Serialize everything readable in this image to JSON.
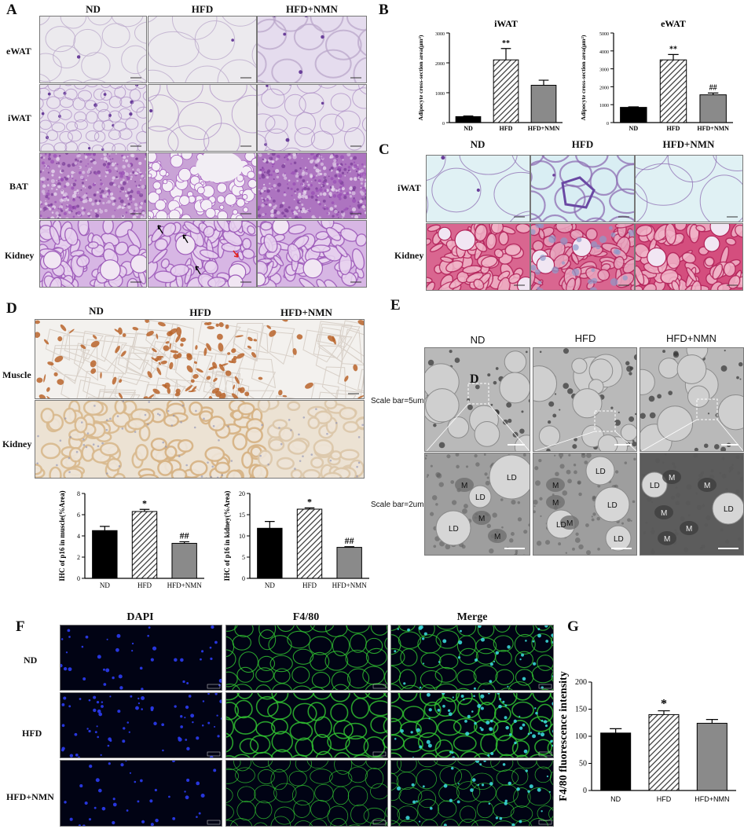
{
  "panelA": {
    "label": "A",
    "columns": [
      "ND",
      "HFD",
      "HFD+NMN"
    ],
    "rows": [
      "eWAT",
      "iWAT",
      "BAT",
      "Kidney"
    ]
  },
  "panelB": {
    "label": "B",
    "charts": [
      {
        "title": "iWAT",
        "ylabel": "Adipocyte cross-section area(μm²)",
        "categories": [
          "ND",
          "HFD",
          "HFD+NMN"
        ],
        "values": [
          200,
          2100,
          1250
        ],
        "errors": [
          20,
          380,
          170
        ],
        "marks": [
          "",
          "**",
          ""
        ],
        "yticks": [
          0,
          1000,
          2000,
          3000
        ],
        "ymax": 3000
      },
      {
        "title": "eWAT",
        "ylabel": "Adipocyte cross-section area(μm²)",
        "categories": [
          "ND",
          "HFD",
          "HFD+NMN"
        ],
        "values": [
          850,
          3500,
          1550
        ],
        "errors": [
          30,
          300,
          100
        ],
        "marks": [
          "",
          "**",
          "##"
        ],
        "yticks": [
          0,
          1000,
          2000,
          3000,
          4000,
          5000
        ],
        "ymax": 5000
      }
    ]
  },
  "panelC": {
    "label": "C",
    "columns": [
      "ND",
      "HFD",
      "HFD+NMN"
    ],
    "rows": [
      "iWAT",
      "Kidney"
    ]
  },
  "panelD": {
    "label": "D",
    "columns": [
      "ND",
      "HFD",
      "HFD+NMN"
    ],
    "rows": [
      "Muscle",
      "Kidney"
    ],
    "charts": [
      {
        "ylabel": "IHC of p16 in muscle(%Area)",
        "categories": [
          "ND",
          "HFD",
          "HFD+NMN"
        ],
        "values": [
          4.5,
          6.3,
          3.3
        ],
        "errors": [
          0.4,
          0.2,
          0.15
        ],
        "marks": [
          "",
          "*",
          "##"
        ],
        "yticks": [
          0,
          2,
          4,
          6,
          8
        ],
        "ymax": 8
      },
      {
        "ylabel": "IHC of p16 in kidney(%Area)",
        "categories": [
          "ND",
          "HFD",
          "HFD+NMN"
        ],
        "values": [
          11.8,
          16.3,
          7.3
        ],
        "errors": [
          1.6,
          0.3,
          0.15
        ],
        "marks": [
          "",
          "*",
          "##"
        ],
        "yticks": [
          0,
          5,
          10,
          15,
          20
        ],
        "ymax": 20
      }
    ]
  },
  "panelE": {
    "label": "E",
    "columns": [
      "ND",
      "HFD",
      "HFD+NMN"
    ],
    "scale1": "Scale bar=5um",
    "scale2": "Scale bar=2um",
    "inset_letter": "D",
    "em_labels": {
      "ld": "LD",
      "m": "M"
    }
  },
  "panelF": {
    "label": "F",
    "columns": [
      "DAPI",
      "F4/80",
      "Merge"
    ],
    "rows": [
      "ND",
      "HFD",
      "HFD+NMN"
    ]
  },
  "panelG": {
    "label": "G",
    "chart": {
      "ylabel": "F4/80 fluorescence intensity",
      "categories": [
        "ND",
        "HFD",
        "HFD+NMN"
      ],
      "values": [
        106,
        140,
        124
      ],
      "errors": [
        8,
        7,
        7
      ],
      "marks": [
        "",
        "*",
        ""
      ],
      "yticks": [
        0,
        50,
        100,
        150,
        200
      ],
      "ymax": 200
    }
  },
  "chart_data": [
    {
      "type": "bar",
      "title": "iWAT",
      "ylabel": "Adipocyte cross-section area(μm²)",
      "categories": [
        "ND",
        "HFD",
        "HFD+NMN"
      ],
      "values": [
        200,
        2100,
        1250
      ],
      "ylim": [
        0,
        3000
      ]
    },
    {
      "type": "bar",
      "title": "eWAT",
      "ylabel": "Adipocyte cross-section area(μm²)",
      "categories": [
        "ND",
        "HFD",
        "HFD+NMN"
      ],
      "values": [
        850,
        3500,
        1550
      ],
      "ylim": [
        0,
        5000
      ]
    },
    {
      "type": "bar",
      "ylabel": "IHC of p16 in muscle(%Area)",
      "categories": [
        "ND",
        "HFD",
        "HFD+NMN"
      ],
      "values": [
        4.5,
        6.3,
        3.3
      ],
      "ylim": [
        0,
        8
      ]
    },
    {
      "type": "bar",
      "ylabel": "IHC of p16 in kidney(%Area)",
      "categories": [
        "ND",
        "HFD",
        "HFD+NMN"
      ],
      "values": [
        11.8,
        16.3,
        7.3
      ],
      "ylim": [
        0,
        20
      ]
    },
    {
      "type": "bar",
      "ylabel": "F4/80 fluorescence intensity",
      "categories": [
        "ND",
        "HFD",
        "HFD+NMN"
      ],
      "values": [
        106,
        140,
        124
      ],
      "ylim": [
        0,
        200
      ]
    }
  ],
  "colors": {
    "nd": "#000000",
    "hfd": "#ffffff",
    "nmn": "#8a8a8a",
    "he_bg": "#e7def0",
    "he_cell": "#b07ac6",
    "kid_pink": "#d66a8c",
    "ihc": "#b8642a",
    "em_bg": "#a8a8a8",
    "fluo": "#32c832"
  }
}
